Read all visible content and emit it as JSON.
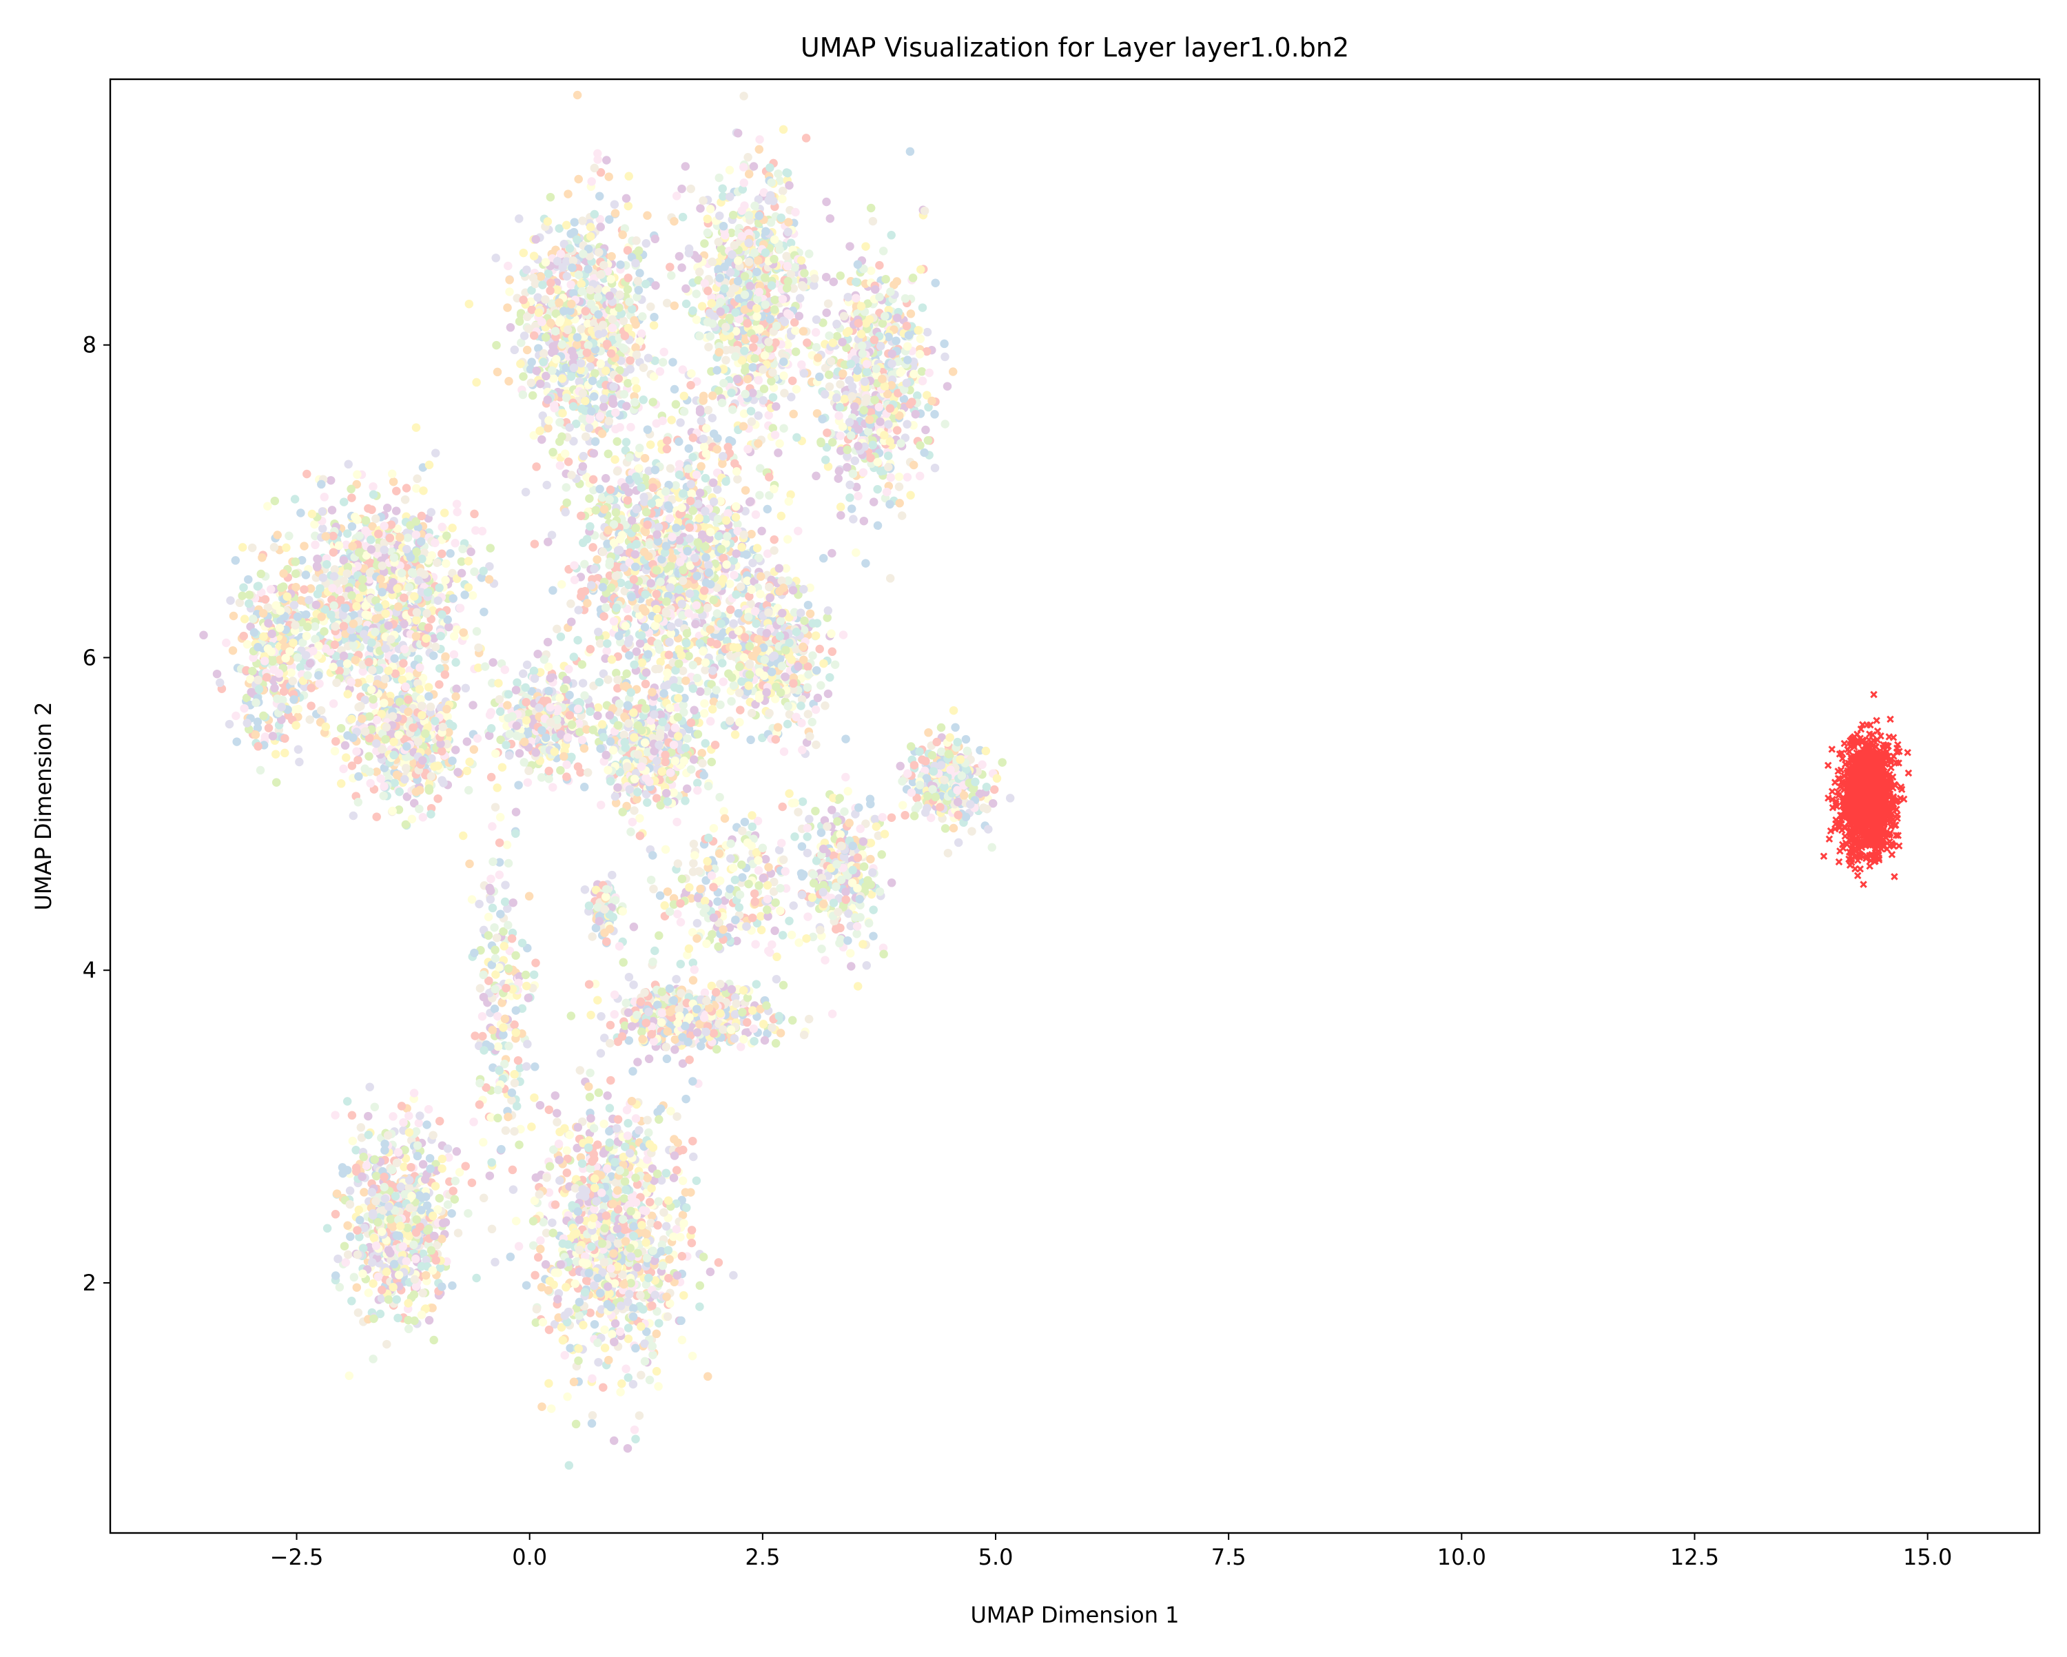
{
  "chart_data": {
    "type": "scatter",
    "title": "UMAP Visualization for Layer layer1.0.bn2",
    "xlabel": "UMAP Dimension 1",
    "ylabel": "UMAP Dimension 2",
    "xlim": [
      -4.5,
      16.2
    ],
    "ylim": [
      0.4,
      9.7
    ],
    "xticks": [
      -2.5,
      0.0,
      2.5,
      5.0,
      7.5,
      10.0,
      12.5,
      15.0
    ],
    "xtick_labels": [
      "−2.5",
      "0.0",
      "2.5",
      "5.0",
      "7.5",
      "10.0",
      "12.5",
      "15.0"
    ],
    "yticks": [
      2,
      4,
      6,
      8
    ],
    "ytick_labels": [
      "2",
      "4",
      "6",
      "8"
    ],
    "grid": false,
    "legend": null,
    "series": [
      {
        "marker": "circle",
        "alpha": 0.45,
        "palette": [
          "#8dd3c7",
          "#ffffb3",
          "#bebada",
          "#fb8072",
          "#80b1d3",
          "#fdb462",
          "#b3de69",
          "#fccde5",
          "#bc80bd",
          "#ccebc5",
          "#ffed6f",
          "#e5d8bd"
        ],
        "clusters": [
          {
            "center": [
              0.6,
              8.1
            ],
            "spread": [
              0.65,
              0.7
            ],
            "count": 850
          },
          {
            "center": [
              2.4,
              8.3
            ],
            "spread": [
              0.55,
              0.75
            ],
            "count": 800
          },
          {
            "center": [
              3.7,
              7.8
            ],
            "spread": [
              0.5,
              0.7
            ],
            "count": 650
          },
          {
            "center": [
              -1.6,
              6.4
            ],
            "spread": [
              0.85,
              0.55
            ],
            "count": 900
          },
          {
            "center": [
              -2.7,
              6.0
            ],
            "spread": [
              0.45,
              0.55
            ],
            "count": 350
          },
          {
            "center": [
              -1.3,
              5.5
            ],
            "spread": [
              0.55,
              0.35
            ],
            "count": 500
          },
          {
            "center": [
              0.2,
              5.6
            ],
            "spread": [
              0.45,
              0.3
            ],
            "count": 350
          },
          {
            "center": [
              1.5,
              6.6
            ],
            "spread": [
              0.9,
              0.75
            ],
            "count": 1200
          },
          {
            "center": [
              1.3,
              5.4
            ],
            "spread": [
              0.5,
              0.35
            ],
            "count": 450
          },
          {
            "center": [
              2.6,
              6.0
            ],
            "spread": [
              0.5,
              0.45
            ],
            "count": 400
          },
          {
            "center": [
              4.5,
              5.2
            ],
            "spread": [
              0.4,
              0.25
            ],
            "count": 300
          },
          {
            "center": [
              3.4,
              4.6
            ],
            "spread": [
              0.35,
              0.45
            ],
            "count": 250
          },
          {
            "center": [
              1.7,
              3.7
            ],
            "spread": [
              0.75,
              0.18
            ],
            "count": 500
          },
          {
            "center": [
              -1.4,
              2.4
            ],
            "spread": [
              0.5,
              0.55
            ],
            "count": 650
          },
          {
            "center": [
              0.9,
              2.3
            ],
            "spread": [
              0.7,
              0.75
            ],
            "count": 1000
          },
          {
            "center": [
              0.8,
              4.4
            ],
            "spread": [
              0.15,
              0.2
            ],
            "count": 80
          },
          {
            "center": [
              -0.3,
              3.8
            ],
            "spread": [
              0.3,
              0.9
            ],
            "count": 200
          },
          {
            "center": [
              2.2,
              4.5
            ],
            "spread": [
              0.8,
              0.45
            ],
            "count": 250
          }
        ]
      },
      {
        "marker": "x",
        "color": "#ff0000",
        "alpha": 0.75,
        "clusters": [
          {
            "center": [
              14.35,
              5.1
            ],
            "spread": [
              0.25,
              0.32
            ],
            "count": 1400
          }
        ]
      }
    ]
  }
}
